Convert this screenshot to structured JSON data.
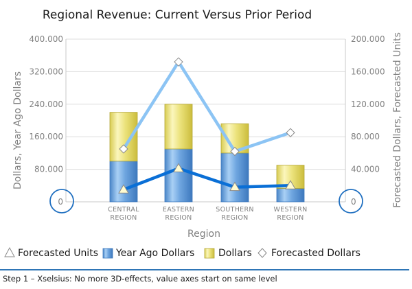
{
  "chart_data": {
    "type": "bar",
    "title": "Regional Revenue: Current Versus Prior Period",
    "xlabel": "Region",
    "ylabel": "Dollars, Year Ago Dollars",
    "y2label": "Forecasted Dollars, Forecasted Units",
    "categories": [
      [
        "CENTRAL",
        "REGION"
      ],
      [
        "EASTERN",
        "REGION"
      ],
      [
        "SOUTHERN",
        "REGION"
      ],
      [
        "WESTERN",
        "REGION"
      ]
    ],
    "ylim": [
      0,
      400000
    ],
    "y2lim": [
      0,
      200000
    ],
    "y_ticks": [
      "0",
      "80.000",
      "160.000",
      "240.000",
      "320.000",
      "400.000"
    ],
    "y2_ticks": [
      "0",
      "40.000",
      "80.000",
      "120.000",
      "160.000",
      "200.000"
    ],
    "grid": true,
    "stacked": true,
    "series": [
      {
        "name": "Year Ago Dollars",
        "kind": "bar",
        "axis": "left",
        "color": "#5b9bd5",
        "values": [
          100000,
          130000,
          120000,
          33000
        ]
      },
      {
        "name": "Dollars",
        "kind": "bar",
        "axis": "left",
        "color": "#e8e07a",
        "values": [
          120000,
          110000,
          72000,
          57000
        ]
      },
      {
        "name": "Forecasted Units",
        "kind": "line",
        "axis": "right",
        "marker": "triangle",
        "color": "#0a6fd6",
        "values": [
          15000,
          41000,
          18000,
          20000
        ]
      },
      {
        "name": "Forecasted Dollars",
        "kind": "line",
        "axis": "right",
        "marker": "diamond",
        "color": "#8cc4f4",
        "values": [
          65000,
          172000,
          62000,
          85000
        ]
      }
    ],
    "legend": {
      "position": "bottom",
      "items": [
        {
          "name": "Forecasted Units",
          "icon": "triangle-marker-icon"
        },
        {
          "name": "Year Ago Dollars",
          "icon": "blue-bar-icon"
        },
        {
          "name": "Dollars",
          "icon": "yellow-bar-icon"
        },
        {
          "name": "Forecasted Dollars",
          "icon": "diamond-marker-icon"
        }
      ]
    },
    "zero_highlight_color": "#1f6fc0"
  },
  "caption": "Step 1 – Xselsius: No more 3D-effects, value axes start on same level",
  "caption_rule_color": "#2e75b6"
}
